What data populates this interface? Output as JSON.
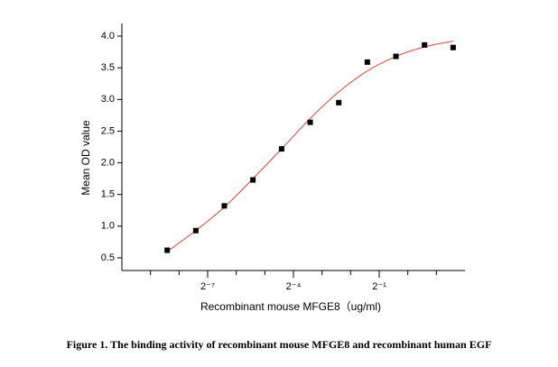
{
  "chart_data": {
    "type": "scatter",
    "xlabel": "Recombinant mouse MFGE8（ug/ml)",
    "ylabel": "Mean OD value",
    "caption": "Figure 1. The binding activity of recombinant mouse MFGE8 and recombinant human EGF",
    "xlog_base": 2,
    "x": [
      0.00293,
      0.00586,
      0.0117,
      0.0234,
      0.0469,
      0.0938,
      0.1875,
      0.375,
      0.75,
      1.5,
      3
    ],
    "values": [
      0.62,
      0.93,
      1.32,
      1.73,
      2.22,
      2.64,
      2.95,
      3.59,
      3.68,
      3.86,
      3.82
    ],
    "color": "#000000",
    "fit": {
      "color": "#e8413c",
      "values": [
        0.6,
        0.93,
        1.3,
        1.75,
        2.22,
        2.7,
        3.12,
        3.45,
        3.68,
        3.83,
        3.92
      ]
    },
    "xlim": [
      0.0009765625,
      4
    ],
    "xticks": [
      {
        "value": 0.0078125,
        "label": "2⁻⁷"
      },
      {
        "value": 0.0625,
        "label": "2⁻⁴"
      },
      {
        "value": 0.5,
        "label": "2⁻¹"
      }
    ],
    "xminorticks": [
      0.001953125,
      0.00390625,
      0.015625,
      0.03125,
      0.125,
      0.25,
      1,
      2
    ],
    "ylim": [
      0.3,
      4.2
    ],
    "yticks": [
      0.5,
      {
        "value": 1,
        "label": "1.0"
      },
      1.5,
      {
        "value": 2,
        "label": "2.0"
      },
      2.5,
      {
        "value": 3,
        "label": "3.0"
      },
      3.5,
      {
        "value": 4,
        "label": "4.0"
      }
    ]
  }
}
